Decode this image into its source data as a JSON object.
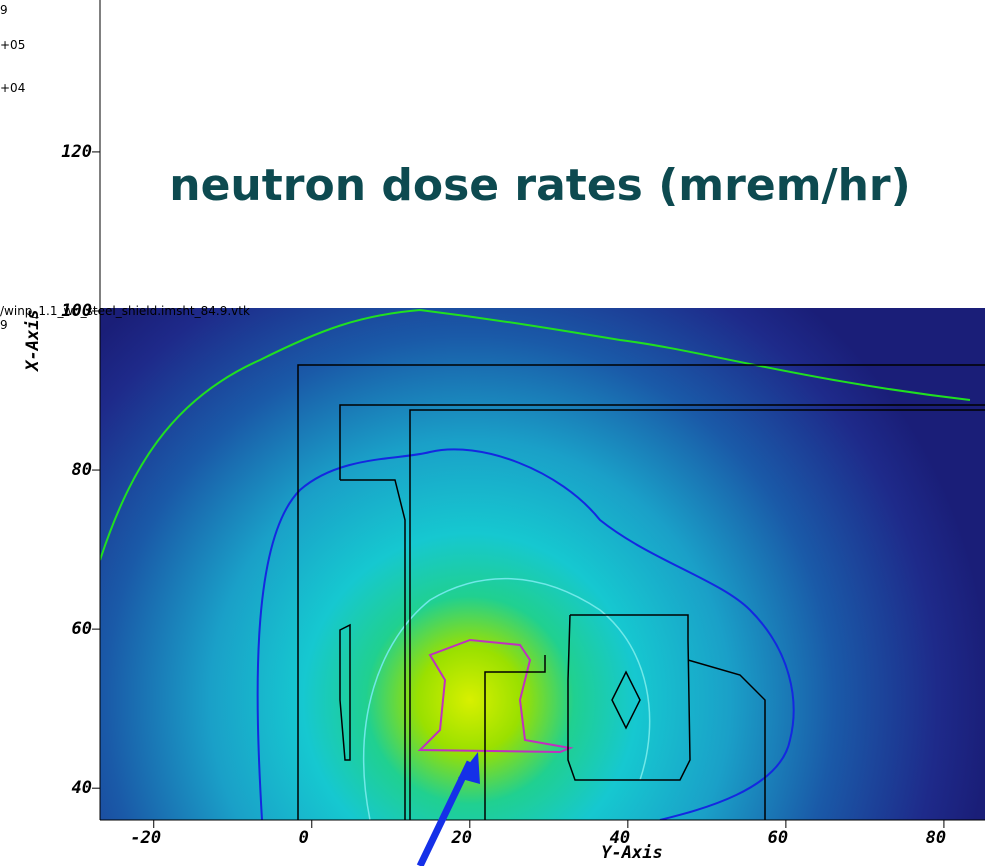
{
  "title": "neutron dose rates (mrem/hr)",
  "legend_fragments": [
    "9",
    "+05",
    "+04"
  ],
  "file_label": "/winp_1.1_wo_steel_shield.imsht_84.9.vtk",
  "file_label_sub": "9",
  "x_axis": {
    "label": "Y-Axis",
    "lim": [
      -26.8,
      85.2
    ],
    "ticks": [
      -20,
      0,
      20,
      40,
      60,
      80
    ]
  },
  "y_axis": {
    "label": "X-Axis",
    "lim": [
      36,
      139.1
    ],
    "ticks": [
      40,
      60,
      80,
      100,
      120
    ]
  }
}
